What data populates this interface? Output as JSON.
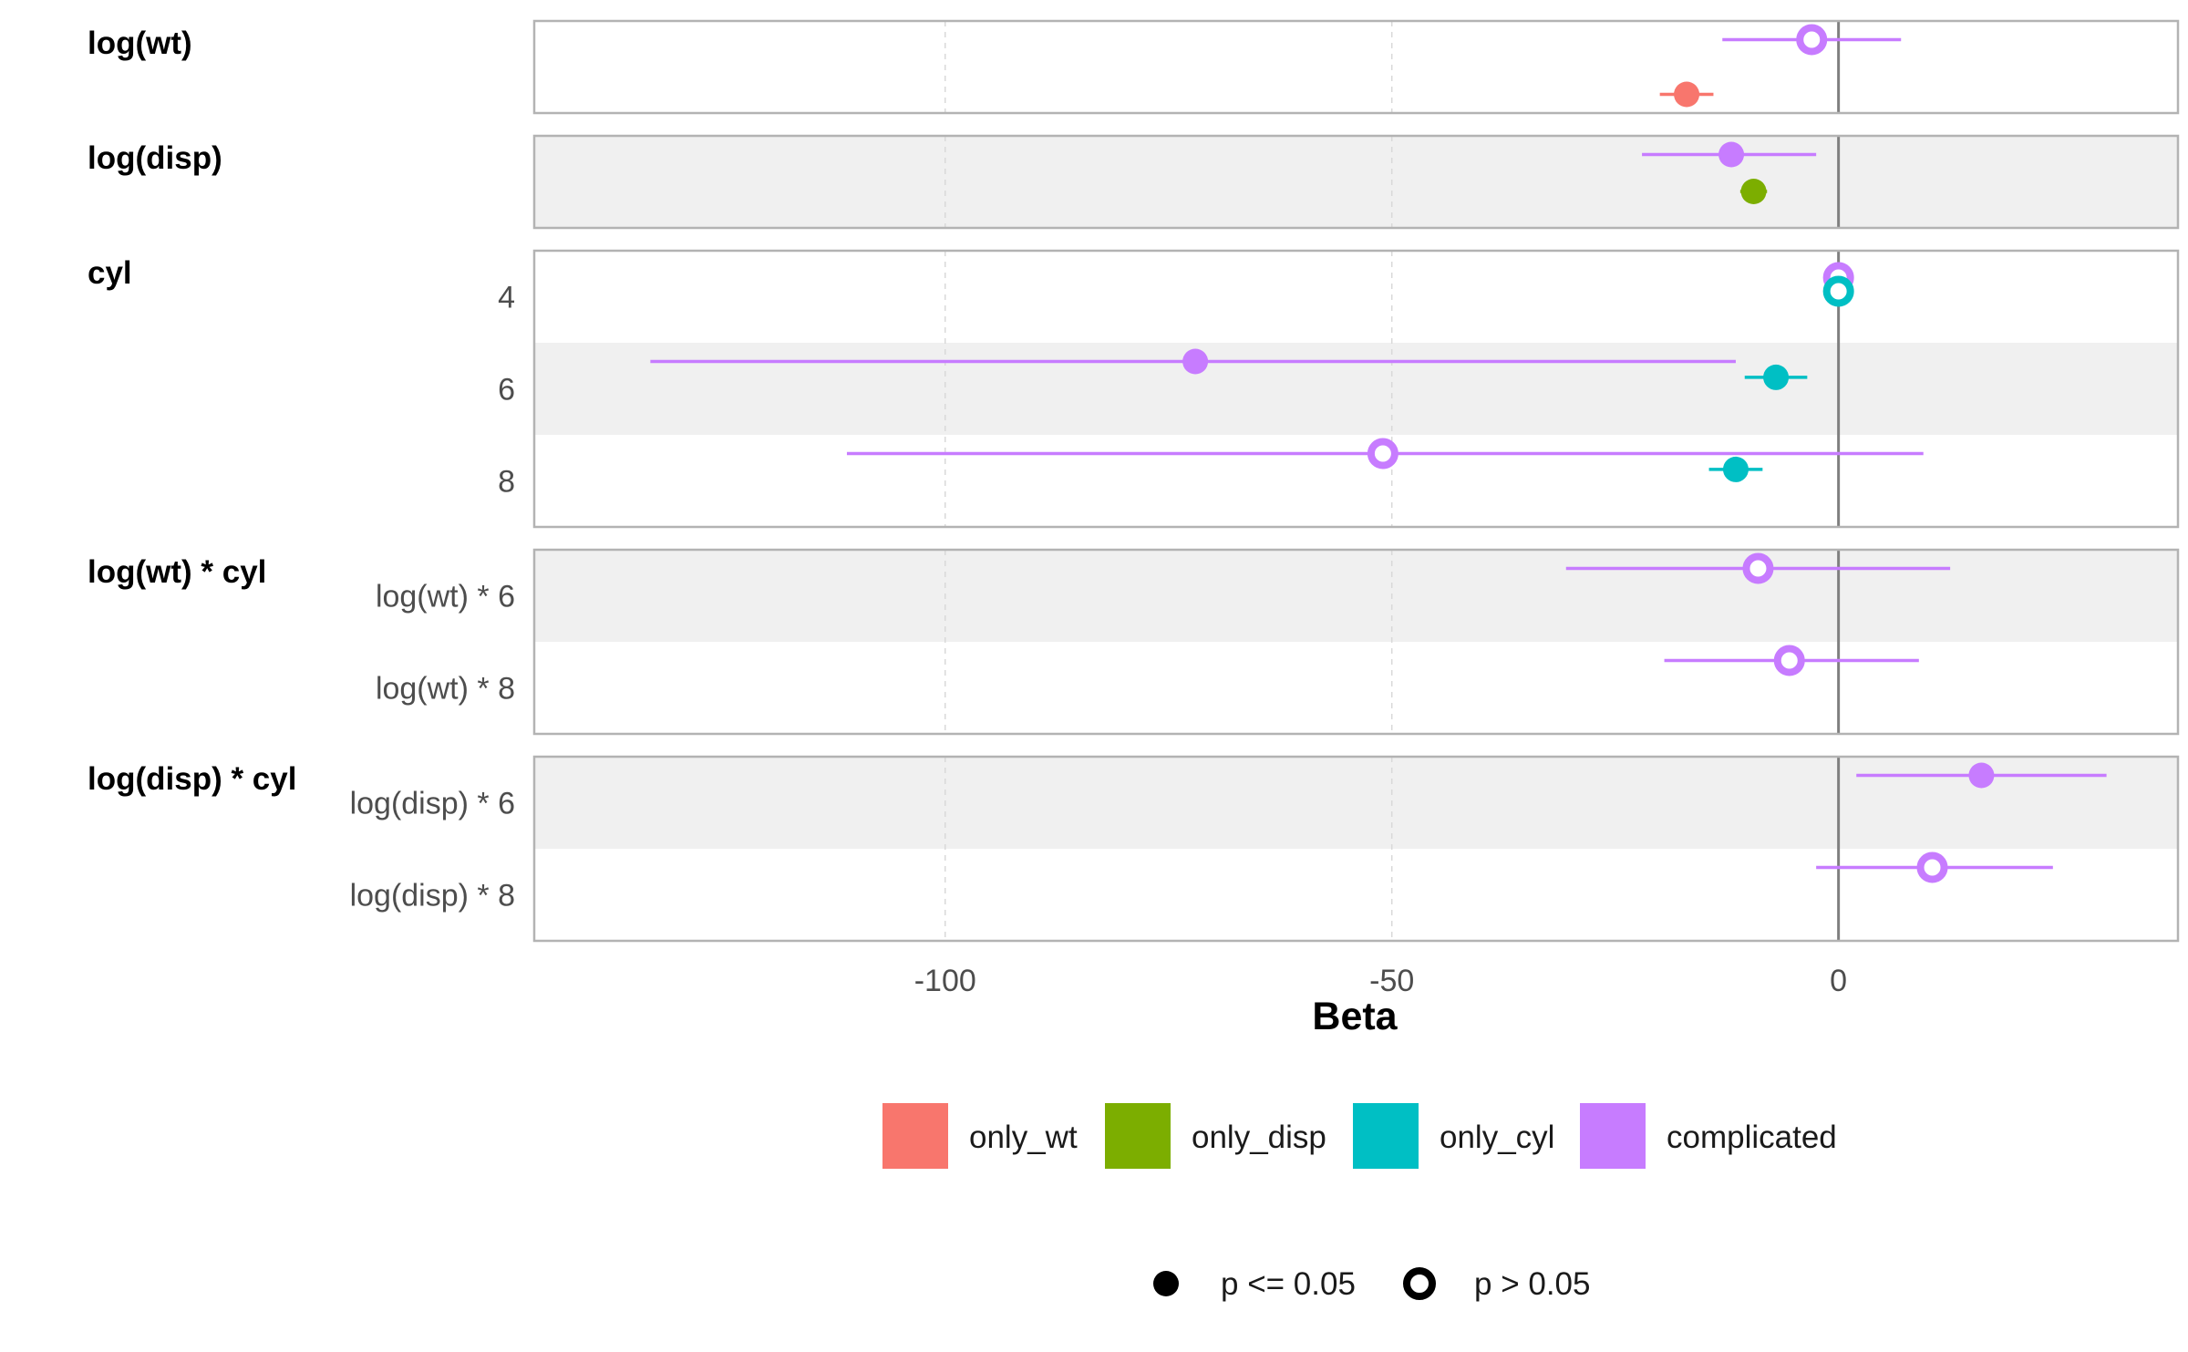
{
  "chart_data": {
    "type": "forest",
    "xlabel": "Beta",
    "xlim": [
      -146,
      38
    ],
    "x_ticks": [
      -100,
      -50,
      0
    ],
    "tick_labels": [
      "-100",
      "-50",
      "0"
    ],
    "reference_line_x": 0,
    "vertical_grid": [
      -100,
      -50
    ],
    "colors": {
      "only_wt": "#F8766D",
      "only_disp": "#7CAE00",
      "only_cyl": "#00BFC4",
      "complicated": "#C77CFF"
    },
    "groups": [
      {
        "label": "log(wt)",
        "rows": [
          {
            "label": "",
            "shaded": false,
            "points": [
              {
                "series": "complicated",
                "estimate": -3,
                "lo": -13,
                "hi": 7,
                "significant": false,
                "offset": -1
              },
              {
                "series": "only_wt",
                "estimate": -17,
                "lo": -20,
                "hi": -14,
                "significant": true,
                "offset": 1
              }
            ]
          }
        ]
      },
      {
        "label": "log(disp)",
        "rows": [
          {
            "label": "",
            "shaded": true,
            "points": [
              {
                "series": "complicated",
                "estimate": -12,
                "lo": -22,
                "hi": -2.5,
                "significant": true,
                "offset": -1
              },
              {
                "series": "only_disp",
                "estimate": -9.5,
                "lo": -11,
                "hi": -8,
                "significant": true,
                "offset": 0.35
              }
            ]
          }
        ]
      },
      {
        "label": "cyl",
        "rows": [
          {
            "label": "4",
            "shaded": false,
            "points": [
              {
                "series": "complicated",
                "estimate": 0,
                "lo": 0,
                "hi": 0,
                "significant": false,
                "offset": -0.7
              },
              {
                "series": "only_cyl",
                "estimate": 0,
                "lo": 0,
                "hi": 0,
                "significant": false,
                "offset": -0.2
              }
            ]
          },
          {
            "label": "6",
            "shaded": true,
            "points": [
              {
                "series": "complicated",
                "estimate": -72,
                "lo": -133,
                "hi": -11.5,
                "significant": true,
                "offset": -1
              },
              {
                "series": "only_cyl",
                "estimate": -7,
                "lo": -10.5,
                "hi": -3.5,
                "significant": true,
                "offset": -0.42
              }
            ]
          },
          {
            "label": "8",
            "shaded": false,
            "points": [
              {
                "series": "complicated",
                "estimate": -51,
                "lo": -111,
                "hi": 9.5,
                "significant": false,
                "offset": -1
              },
              {
                "series": "only_cyl",
                "estimate": -11.5,
                "lo": -14.5,
                "hi": -8.5,
                "significant": true,
                "offset": -0.42
              }
            ]
          }
        ]
      },
      {
        "label": "log(wt) * cyl",
        "rows": [
          {
            "label": "log(wt) * 6",
            "shaded": true,
            "points": [
              {
                "series": "complicated",
                "estimate": -9,
                "lo": -30.5,
                "hi": 12.5,
                "significant": false,
                "offset": -1
              }
            ]
          },
          {
            "label": "log(wt) * 8",
            "shaded": false,
            "points": [
              {
                "series": "complicated",
                "estimate": -5.5,
                "lo": -19.5,
                "hi": 9,
                "significant": false,
                "offset": -1
              }
            ]
          }
        ]
      },
      {
        "label": "log(disp) * cyl",
        "rows": [
          {
            "label": "log(disp) * 6",
            "shaded": true,
            "points": [
              {
                "series": "complicated",
                "estimate": 16,
                "lo": 2,
                "hi": 30,
                "significant": true,
                "offset": -1
              }
            ]
          },
          {
            "label": "log(disp) * 8",
            "shaded": false,
            "points": [
              {
                "series": "complicated",
                "estimate": 10.5,
                "lo": -2.5,
                "hi": 24,
                "significant": false,
                "offset": -1
              }
            ]
          }
        ]
      }
    ],
    "legend": {
      "placement": "bottom",
      "series": [
        {
          "key": "only_wt",
          "label": "only_wt"
        },
        {
          "key": "only_disp",
          "label": "only_disp"
        },
        {
          "key": "only_cyl",
          "label": "only_cyl"
        },
        {
          "key": "complicated",
          "label": "complicated"
        }
      ],
      "significance": [
        {
          "label": "p <= 0.05",
          "filled": true
        },
        {
          "label": "p > 0.05",
          "filled": false
        }
      ]
    }
  }
}
